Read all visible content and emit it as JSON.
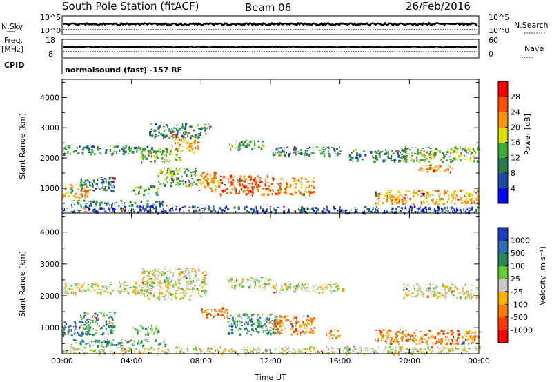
{
  "header": {
    "station": "South Pole Station (fitACF)",
    "beam": "Beam 06",
    "date": "26/Feb/2016"
  },
  "top_panels": {
    "nsky": {
      "label": "N.Sky",
      "right_label": "N.Search",
      "ticks_left": [
        "10^5",
        "10^0"
      ],
      "ticks_right": [
        "10^5",
        "10^0"
      ]
    },
    "freq": {
      "label_line1": "Freq.",
      "label_line2": "[MHz]",
      "right_label": "Nave",
      "ticks_left": [
        "18",
        "8"
      ],
      "ticks_right": [
        "60",
        "0"
      ]
    },
    "cpid": {
      "label": "CPID",
      "text": "normalsound (fast) -157 RF"
    }
  },
  "chart_data": [
    {
      "type": "heatmap",
      "parameter": "power",
      "ylabel": "Slant Range [km]",
      "xlabel": "",
      "ylim": [
        180,
        4600
      ],
      "yticks": [
        "1000",
        "2000",
        "3000",
        "4000"
      ],
      "xlim_hours": [
        0,
        24
      ],
      "xticks": [
        "00:00",
        "04:00",
        "08:00",
        "12:00",
        "16:00",
        "20:00",
        "00:00"
      ],
      "colorbar": {
        "label": "Power [dB]",
        "ticks": [
          "4",
          "8",
          "12",
          "16",
          "20",
          "24",
          "28"
        ],
        "colors": [
          "#0000ff",
          "#1f4ba8",
          "#2c7f4c",
          "#3fae35",
          "#dede00",
          "#ff9400",
          "#ff5000",
          "#ff0000"
        ]
      },
      "scatter_bands": [
        {
          "t0": 0.0,
          "t1": 5.2,
          "r0": 2150,
          "r1": 2420,
          "level": 2
        },
        {
          "t0": 4.5,
          "t1": 6.8,
          "r0": 1850,
          "r1": 2350,
          "level": 3
        },
        {
          "t0": 6.3,
          "t1": 7.8,
          "r0": 2200,
          "r1": 2800,
          "level": 5
        },
        {
          "t0": 9.6,
          "t1": 11.6,
          "r0": 2300,
          "r1": 2600,
          "level": 3
        },
        {
          "t0": 12.0,
          "t1": 16.0,
          "r0": 2100,
          "r1": 2400,
          "level": 2
        },
        {
          "t0": 16.5,
          "t1": 19.8,
          "r0": 1900,
          "r1": 2300,
          "level": 2
        },
        {
          "t0": 19.5,
          "t1": 24.0,
          "r0": 1900,
          "r1": 2400,
          "level": 3
        },
        {
          "t0": 20.5,
          "t1": 22.5,
          "r0": 1550,
          "r1": 1800,
          "level": 5
        },
        {
          "t0": 0.0,
          "t1": 1.5,
          "r0": 700,
          "r1": 1150,
          "level": 5
        },
        {
          "t0": 1.0,
          "t1": 3.0,
          "r0": 900,
          "r1": 1400,
          "level": 2
        },
        {
          "t0": 4.0,
          "t1": 5.5,
          "r0": 800,
          "r1": 1100,
          "level": 3
        },
        {
          "t0": 5.5,
          "t1": 7.8,
          "r0": 1100,
          "r1": 1700,
          "level": 3
        },
        {
          "t0": 7.8,
          "t1": 9.0,
          "r0": 900,
          "r1": 1600,
          "level": 5
        },
        {
          "t0": 9.0,
          "t1": 12.4,
          "r0": 800,
          "r1": 1450,
          "level": 6
        },
        {
          "t0": 12.4,
          "t1": 14.5,
          "r0": 800,
          "r1": 1400,
          "level": 5
        },
        {
          "t0": 18.0,
          "t1": 24.0,
          "r0": 500,
          "r1": 950,
          "level": 5
        },
        {
          "t0": 0.0,
          "t1": 24.0,
          "r0": 200,
          "r1": 420,
          "level": 1
        },
        {
          "t0": 0.5,
          "t1": 6.0,
          "r0": 420,
          "r1": 620,
          "level": 2
        },
        {
          "t0": 5.0,
          "t1": 8.5,
          "r0": 2700,
          "r1": 3150,
          "level": 2
        }
      ]
    },
    {
      "type": "heatmap",
      "parameter": "velocity",
      "ylabel": "Slant Range [km]",
      "xlabel": "Time UT",
      "ylim": [
        180,
        4600
      ],
      "yticks": [
        "1000",
        "2000",
        "3000",
        "4000"
      ],
      "xlim_hours": [
        0,
        24
      ],
      "xticks": [
        "00:00",
        "04:00",
        "08:00",
        "12:00",
        "16:00",
        "20:00",
        "00:00"
      ],
      "colorbar": {
        "label": "Velocity [m s⁻¹]",
        "ticks": [
          "1000",
          "500",
          "100",
          "25",
          "-25",
          "-100",
          "-500",
          "-1000"
        ],
        "colors": [
          "#1a3fc6",
          "#2f6fb2",
          "#2a8a5a",
          "#66cc33",
          "#c8c8c8",
          "#ffb200",
          "#ff7a00",
          "#ff3a00",
          "#ff0000"
        ]
      },
      "scatter_bands": [
        {
          "t0": 0.0,
          "t1": 5.2,
          "r0": 2100,
          "r1": 2450,
          "level": 4
        },
        {
          "t0": 4.5,
          "t1": 8.3,
          "r0": 1900,
          "r1": 2900,
          "level": 4
        },
        {
          "t0": 9.5,
          "t1": 12.0,
          "r0": 2250,
          "r1": 2600,
          "level": 4
        },
        {
          "t0": 12.0,
          "t1": 16.2,
          "r0": 2100,
          "r1": 2400,
          "level": 4
        },
        {
          "t0": 19.5,
          "t1": 24.0,
          "r0": 1950,
          "r1": 2400,
          "level": 4
        },
        {
          "t0": 0.0,
          "t1": 1.5,
          "r0": 750,
          "r1": 1250,
          "level": 1
        },
        {
          "t0": 1.0,
          "t1": 3.0,
          "r0": 800,
          "r1": 1500,
          "level": 2
        },
        {
          "t0": 4.0,
          "t1": 5.5,
          "r0": 800,
          "r1": 1100,
          "level": 3
        },
        {
          "t0": 8.0,
          "t1": 9.5,
          "r0": 1300,
          "r1": 1650,
          "level": 6
        },
        {
          "t0": 9.5,
          "t1": 12.5,
          "r0": 800,
          "r1": 1450,
          "level": 2
        },
        {
          "t0": 12.0,
          "t1": 14.5,
          "r0": 800,
          "r1": 1400,
          "level": 6
        },
        {
          "t0": 15.0,
          "t1": 16.0,
          "r0": 650,
          "r1": 950,
          "level": 6
        },
        {
          "t0": 18.0,
          "t1": 24.0,
          "r0": 500,
          "r1": 950,
          "level": 6
        },
        {
          "t0": 0.0,
          "t1": 24.0,
          "r0": 200,
          "r1": 420,
          "level": 4
        },
        {
          "t0": 0.5,
          "t1": 6.0,
          "r0": 450,
          "r1": 650,
          "level": 2
        }
      ]
    }
  ]
}
